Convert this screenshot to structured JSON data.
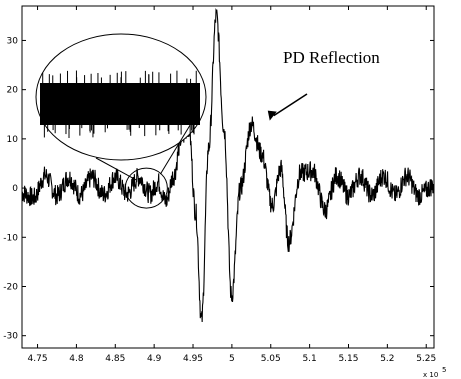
{
  "chart_data": {
    "type": "line",
    "title": "",
    "xlabel": "",
    "ylabel": "",
    "x_multiplier_label": "x 10",
    "x_multiplier_exponent": "5",
    "xlim": [
      4.73,
      5.26
    ],
    "ylim": [
      -32.5,
      37
    ],
    "x_ticks": [
      4.75,
      4.8,
      4.85,
      4.9,
      4.95,
      5.0,
      5.05,
      5.1,
      5.15,
      5.2,
      5.25
    ],
    "x_tick_labels": [
      "4.75",
      "4.8",
      "4.85",
      "4.9",
      "4.95",
      "5",
      "5.05",
      "5.1",
      "5.15",
      "5.2",
      "5.25"
    ],
    "y_ticks": [
      -30,
      -20,
      -10,
      0,
      10,
      20,
      30
    ],
    "y_tick_labels": [
      "-30",
      "-20",
      "-10",
      "0",
      "10",
      "20",
      "30"
    ],
    "grid": false,
    "series_color": "#000000",
    "series": [
      {
        "x": [
          4.73,
          4.745,
          4.76,
          4.775,
          4.79,
          4.805,
          4.82,
          4.835,
          4.85,
          4.865,
          4.88,
          4.895,
          4.905,
          4.915,
          4.925,
          4.935,
          4.9445,
          4.9535,
          4.961,
          4.97,
          4.98,
          4.99,
          4.9995,
          5.011,
          5.025,
          5.038,
          5.052,
          5.063,
          5.073,
          5.088,
          5.104,
          5.12,
          5.135,
          5.15,
          5.165,
          5.18,
          5.195,
          5.21,
          5.225,
          5.24,
          5.26
        ],
        "y": [
          -1,
          -2,
          2.5,
          -1.5,
          2.2,
          -1.4,
          2.2,
          -1.3,
          2.2,
          -1.2,
          2.2,
          -1.2,
          1.2,
          -2.8,
          2.5,
          10,
          12.5,
          -5,
          -27,
          8,
          35,
          12,
          -22,
          0,
          13,
          7,
          -3.5,
          4,
          -11,
          3,
          3.5,
          -4.5,
          2.5,
          -1.5,
          2.5,
          -1.5,
          2.5,
          -1.5,
          2.5,
          -1.5,
          0.5
        ]
      }
    ],
    "annotations": [
      {
        "text": "PD Reflection",
        "target_x": 5.05,
        "target_y": 13.5
      }
    ],
    "zoom_inset": {
      "type": "ellipse",
      "source_x": 4.89,
      "source_y": 0,
      "shows": "zoomed high-frequency noise of the signal"
    }
  }
}
